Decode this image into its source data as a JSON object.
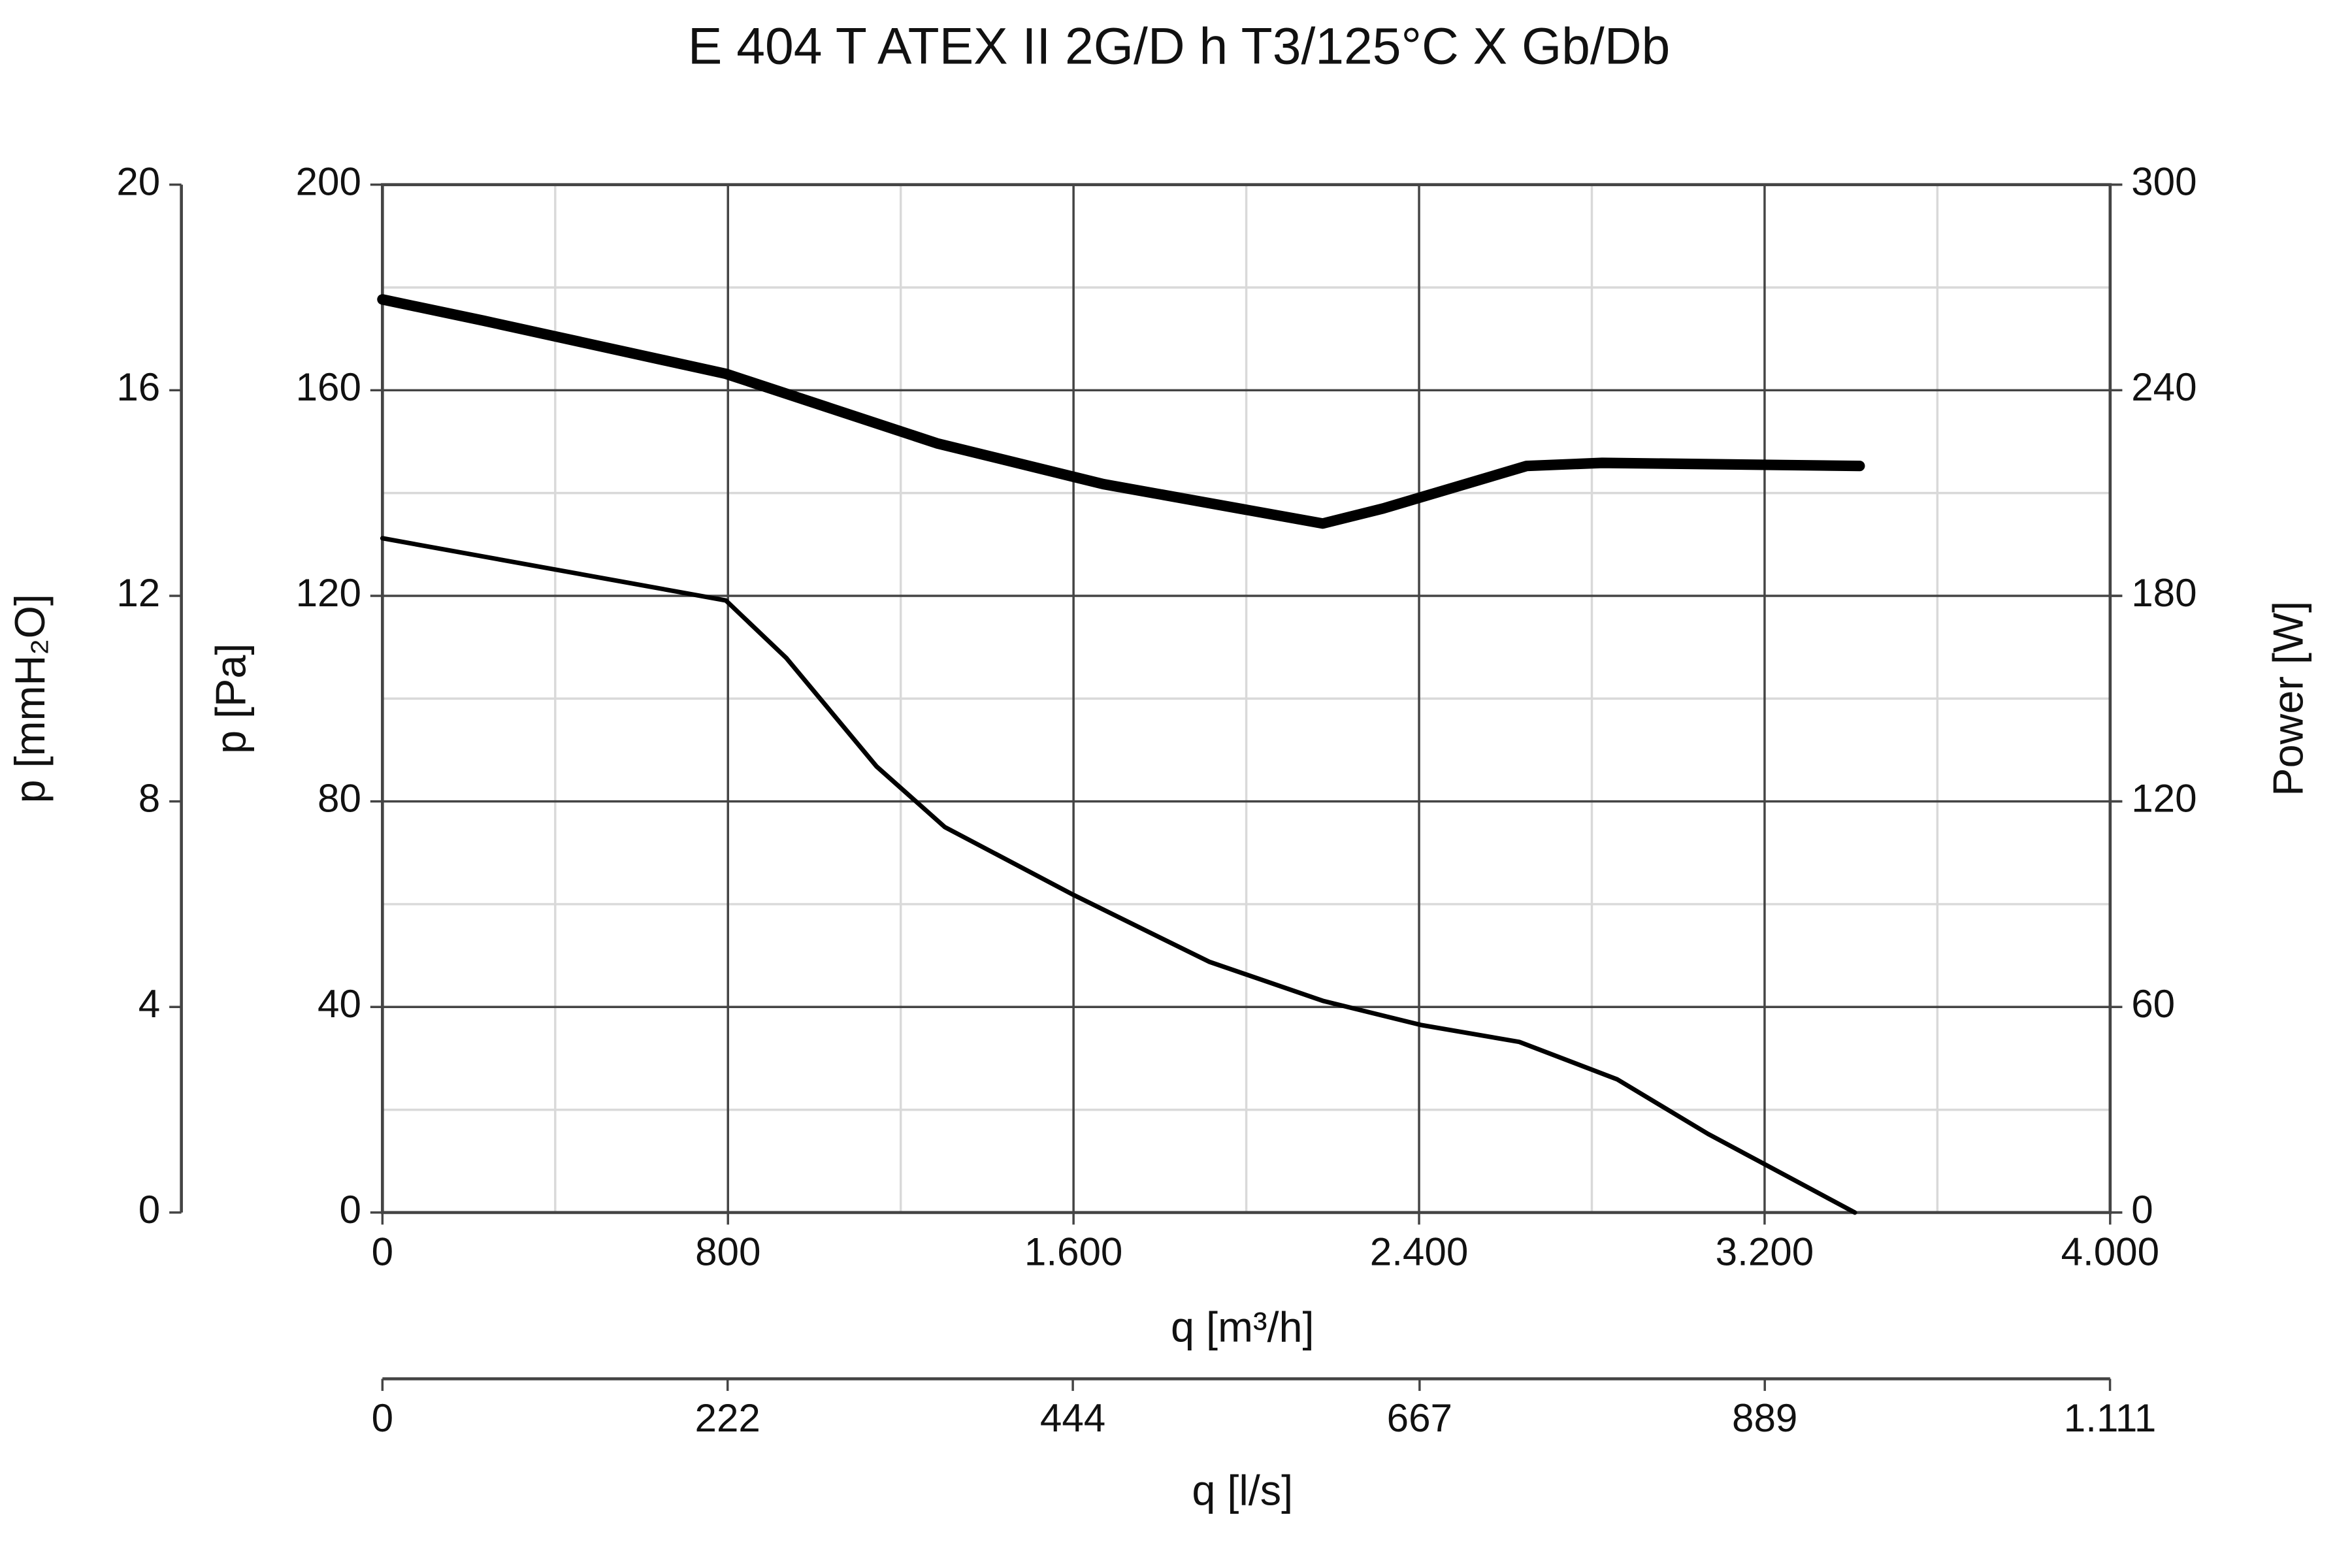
{
  "chart_data": {
    "type": "line",
    "title": "E 404 T ATEX II 2G/D h T3/125°C X Gb/Db",
    "xlabel": "q [m³/h]",
    "x2label": "q [l/s]",
    "ylabel": "p [Pa]",
    "y3label": "p [mmH₂O]",
    "y2label": "Power [W]",
    "xlim": [
      0,
      4000
    ],
    "xticks": [
      0,
      800,
      {
        "value": 1600,
        "label": "1.600"
      },
      {
        "value": 2400,
        "label": "2.400"
      },
      {
        "value": 3200,
        "label": "3.200"
      },
      {
        "value": 4000,
        "label": "4.000"
      }
    ],
    "x_minor_ticks": [
      400,
      1200,
      2000,
      2800,
      3600
    ],
    "x2lim": [
      0,
      1111.1
    ],
    "x2ticks": [
      0,
      222,
      444,
      667,
      889,
      {
        "value": 1111,
        "label": "1.111"
      }
    ],
    "ylim": [
      0,
      200
    ],
    "yticks": [
      0,
      40,
      80,
      120,
      160,
      200
    ],
    "y_minor_ticks": [
      20,
      60,
      100,
      140,
      180
    ],
    "y2lim": [
      0,
      300
    ],
    "y2ticks": [
      0,
      60,
      120,
      180,
      240,
      300
    ],
    "y3lim": [
      0,
      20
    ],
    "y3ticks": [
      0,
      4,
      8,
      12,
      16,
      20
    ],
    "grid": true,
    "series": [
      {
        "color": "#000000",
        "x": [
          0,
          795,
          935,
          1144,
          1302,
          1600,
          1914,
          2177,
          2404,
          2632,
          2859,
          3069,
          3409
        ],
        "values": [
          131.2,
          119.1,
          107.9,
          86.8,
          75,
          61.8,
          48.8,
          41.2,
          36.5,
          33.2,
          25.9,
          15.3,
          0
        ]
      },
      {
        "color": "#000000",
        "axis": "y2",
        "x": [
          0,
          234,
          795,
          1284,
          1669,
          2177,
          2317,
          2649,
          2824,
          3420
        ],
        "values": [
          266.5,
          260.3,
          244.8,
          224.5,
          212.6,
          201.1,
          205.5,
          217.9,
          218.8,
          217.9
        ]
      }
    ]
  }
}
